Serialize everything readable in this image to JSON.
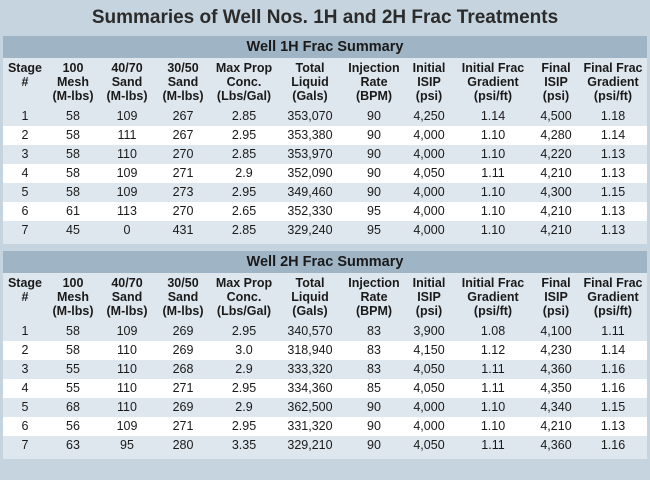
{
  "title": "Summaries of Well Nos. 1H and 2H Frac Treatments",
  "headers": [
    [
      "Stage",
      "#"
    ],
    [
      "100",
      "Mesh",
      "(M-lbs)"
    ],
    [
      "40/70",
      "Sand",
      "(M-lbs)"
    ],
    [
      "30/50",
      "Sand",
      "(M-lbs)"
    ],
    [
      "Max Prop",
      "Conc.",
      "(Lbs/Gal)"
    ],
    [
      "Total",
      "Liquid",
      "(Gals)"
    ],
    [
      "Injection",
      "Rate",
      "(BPM)"
    ],
    [
      "Initial",
      "ISIP",
      "(psi)"
    ],
    [
      "Initial Frac",
      "Gradient",
      "(psi/ft)"
    ],
    [
      "Final",
      "ISIP",
      "(psi)"
    ],
    [
      "Final Frac",
      "Gradient",
      "(psi/ft)"
    ]
  ],
  "tables": [
    {
      "title": "Well 1H Frac Summary",
      "rows": [
        [
          "1",
          "58",
          "109",
          "267",
          "2.85",
          "353,070",
          "90",
          "4,250",
          "1.14",
          "4,500",
          "1.18"
        ],
        [
          "2",
          "58",
          "111",
          "267",
          "2.95",
          "353,380",
          "90",
          "4,000",
          "1.10",
          "4,280",
          "1.14"
        ],
        [
          "3",
          "58",
          "110",
          "270",
          "2.85",
          "353,970",
          "90",
          "4,000",
          "1.10",
          "4,220",
          "1.13"
        ],
        [
          "4",
          "58",
          "109",
          "271",
          "2.9",
          "352,090",
          "90",
          "4,050",
          "1.11",
          "4,210",
          "1.13"
        ],
        [
          "5",
          "58",
          "109",
          "273",
          "2.95",
          "349,460",
          "90",
          "4,000",
          "1.10",
          "4,300",
          "1.15"
        ],
        [
          "6",
          "61",
          "113",
          "270",
          "2.65",
          "352,330",
          "95",
          "4,000",
          "1.10",
          "4,210",
          "1.13"
        ],
        [
          "7",
          "45",
          "0",
          "431",
          "2.85",
          "329,240",
          "95",
          "4,000",
          "1.10",
          "4,210",
          "1.13"
        ]
      ]
    },
    {
      "title": "Well 2H Frac Summary",
      "rows": [
        [
          "1",
          "58",
          "109",
          "269",
          "2.95",
          "340,570",
          "83",
          "3,900",
          "1.08",
          "4,100",
          "1.11"
        ],
        [
          "2",
          "58",
          "110",
          "269",
          "3.0",
          "318,940",
          "83",
          "4,150",
          "1.12",
          "4,230",
          "1.14"
        ],
        [
          "3",
          "55",
          "110",
          "268",
          "2.9",
          "333,320",
          "83",
          "4,050",
          "1.11",
          "4,360",
          "1.16"
        ],
        [
          "4",
          "55",
          "110",
          "271",
          "2.95",
          "334,360",
          "85",
          "4,050",
          "1.11",
          "4,350",
          "1.16"
        ],
        [
          "5",
          "68",
          "110",
          "269",
          "2.9",
          "362,500",
          "90",
          "4,000",
          "1.10",
          "4,340",
          "1.15"
        ],
        [
          "6",
          "56",
          "109",
          "271",
          "2.95",
          "331,320",
          "90",
          "4,000",
          "1.10",
          "4,210",
          "1.13"
        ],
        [
          "7",
          "63",
          "95",
          "280",
          "3.35",
          "329,210",
          "90",
          "4,050",
          "1.11",
          "4,360",
          "1.16"
        ]
      ]
    }
  ]
}
